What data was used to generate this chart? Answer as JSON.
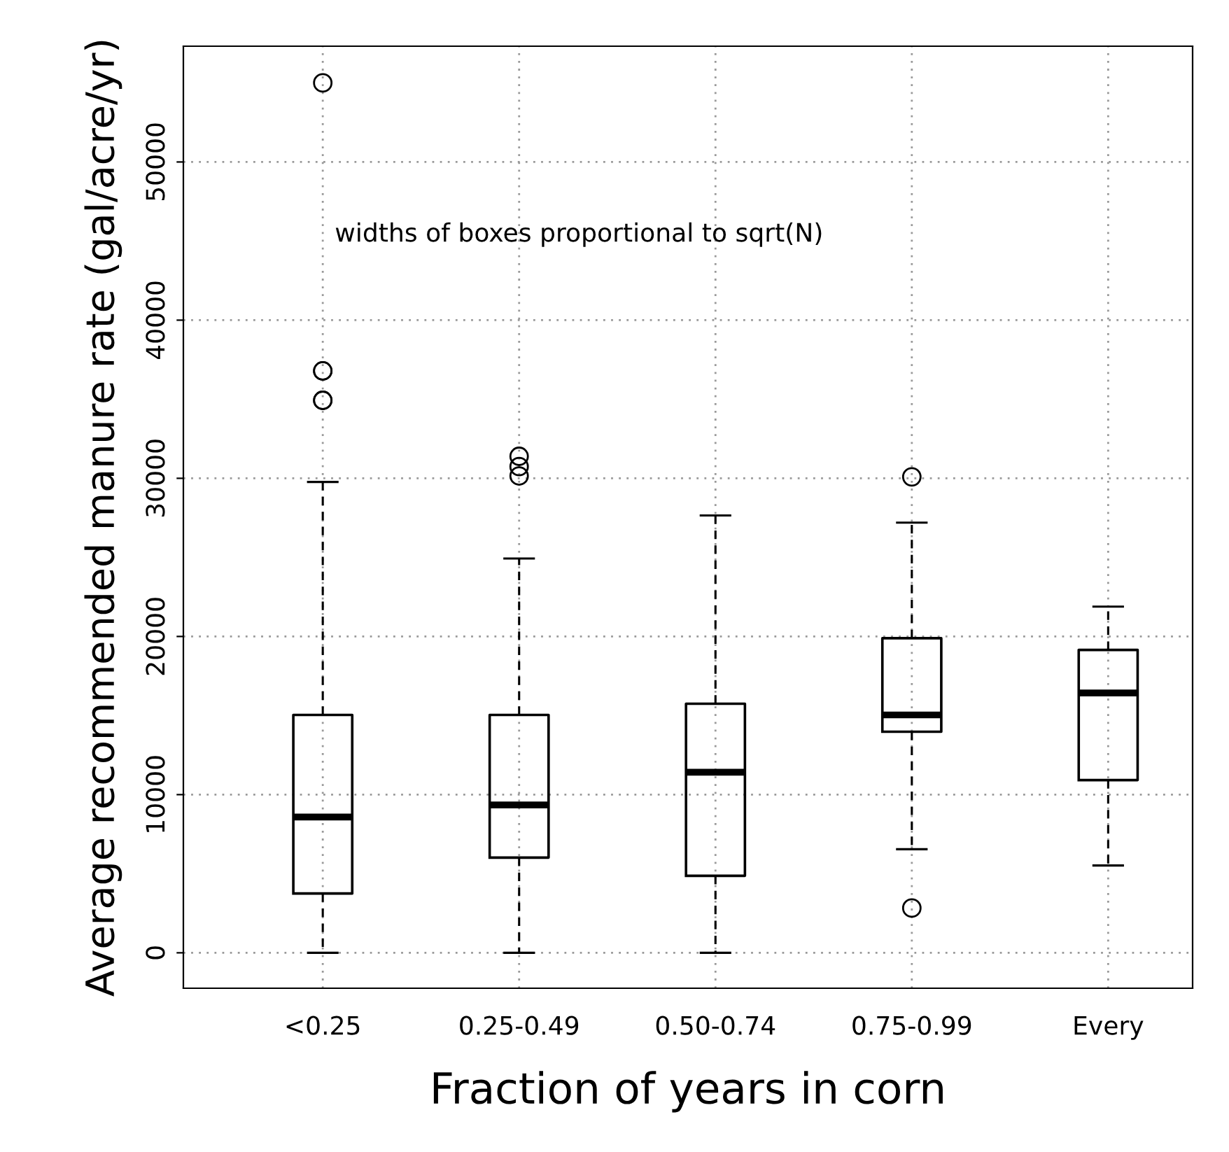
{
  "chart_data": {
    "type": "box",
    "xlabel": "Fraction of years in corn",
    "ylabel": "Average recommended manure rate (gal/acre/yr)",
    "categories": [
      "<0.25",
      "0.25-0.49",
      "0.50-0.74",
      "0.75-0.99",
      "Every"
    ],
    "boxes": [
      {
        "low": 0,
        "q1": 3750,
        "median": 8580,
        "q3": 15040,
        "high": 29770,
        "outliers": [
          34930,
          34930,
          36790,
          36790,
          55000
        ]
      },
      {
        "low": 0,
        "q1": 6020,
        "median": 9350,
        "q3": 15040,
        "high": 24930,
        "outliers": [
          30150,
          30740,
          31390
        ]
      },
      {
        "low": 0,
        "q1": 4870,
        "median": 11420,
        "q3": 15750,
        "high": 27650
      },
      {
        "low": 6550,
        "q1": 13980,
        "median": 15040,
        "q3": 19890,
        "high": 27200,
        "outliers": [
          2830,
          30090
        ]
      },
      {
        "low": 5520,
        "q1": 10920,
        "median": 16430,
        "q3": 19150,
        "high": 21890
      }
    ],
    "ylim": [
      -2240,
      57320
    ],
    "yticks": [
      0,
      10000,
      20000,
      30000,
      40000,
      50000
    ],
    "grid": true,
    "annotations": [
      "widths of boxes proportional to sqrt(N)"
    ]
  }
}
